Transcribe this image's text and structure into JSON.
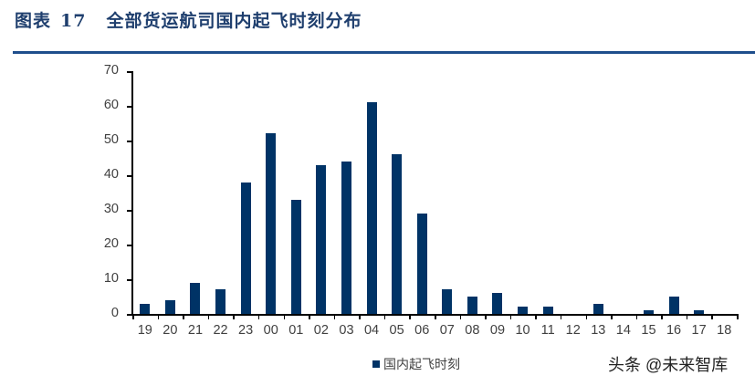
{
  "header": {
    "figure_label": "图表",
    "figure_number": "17",
    "title": "全部货运航司国内起飞时刻分布"
  },
  "legend": {
    "label": "国内起飞时刻",
    "color": "#003366"
  },
  "watermark": "头条 @未来智库",
  "chart_data": {
    "type": "bar",
    "title": "全部货运航司国内起飞时刻分布",
    "xlabel": "",
    "ylabel": "",
    "categories": [
      "19",
      "20",
      "21",
      "22",
      "23",
      "00",
      "01",
      "02",
      "03",
      "04",
      "05",
      "06",
      "07",
      "08",
      "09",
      "10",
      "11",
      "12",
      "13",
      "14",
      "15",
      "16",
      "17",
      "18"
    ],
    "series": [
      {
        "name": "国内起飞时刻",
        "color": "#003366",
        "values": [
          3,
          4,
          9,
          7,
          38,
          52,
          33,
          43,
          44,
          61,
          46,
          29,
          7,
          5,
          6,
          2,
          2,
          0,
          3,
          0,
          1,
          5,
          1,
          0
        ]
      }
    ],
    "ylim": [
      0,
      70
    ],
    "yticks": [
      0,
      10,
      20,
      30,
      40,
      50,
      60,
      70
    ],
    "grid": false,
    "legend_position": "bottom"
  }
}
